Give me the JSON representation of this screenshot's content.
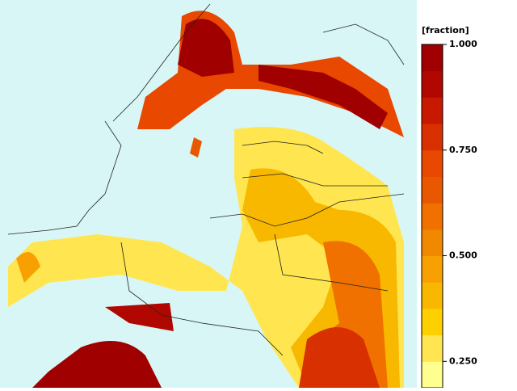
{
  "colorbar": {
    "label": "[fraction]",
    "lim": [
      0.1875,
      1
    ],
    "colors": [
      "#ffff90",
      "#ffe650",
      "#ffd000",
      "#f8b800",
      "#f8a000",
      "#f08800",
      "#f07000",
      "#e85800",
      "#e84800",
      "#d83000",
      "#c81800",
      "#b00800",
      "#a00000"
    ],
    "ticks": [
      {
        "value": 1,
        "label": "1.000"
      },
      {
        "value": 0.75,
        "label": "0.750"
      },
      {
        "value": 0.5,
        "label": "0.500"
      },
      {
        "value": 0.25,
        "label": "0.250"
      }
    ]
  }
}
